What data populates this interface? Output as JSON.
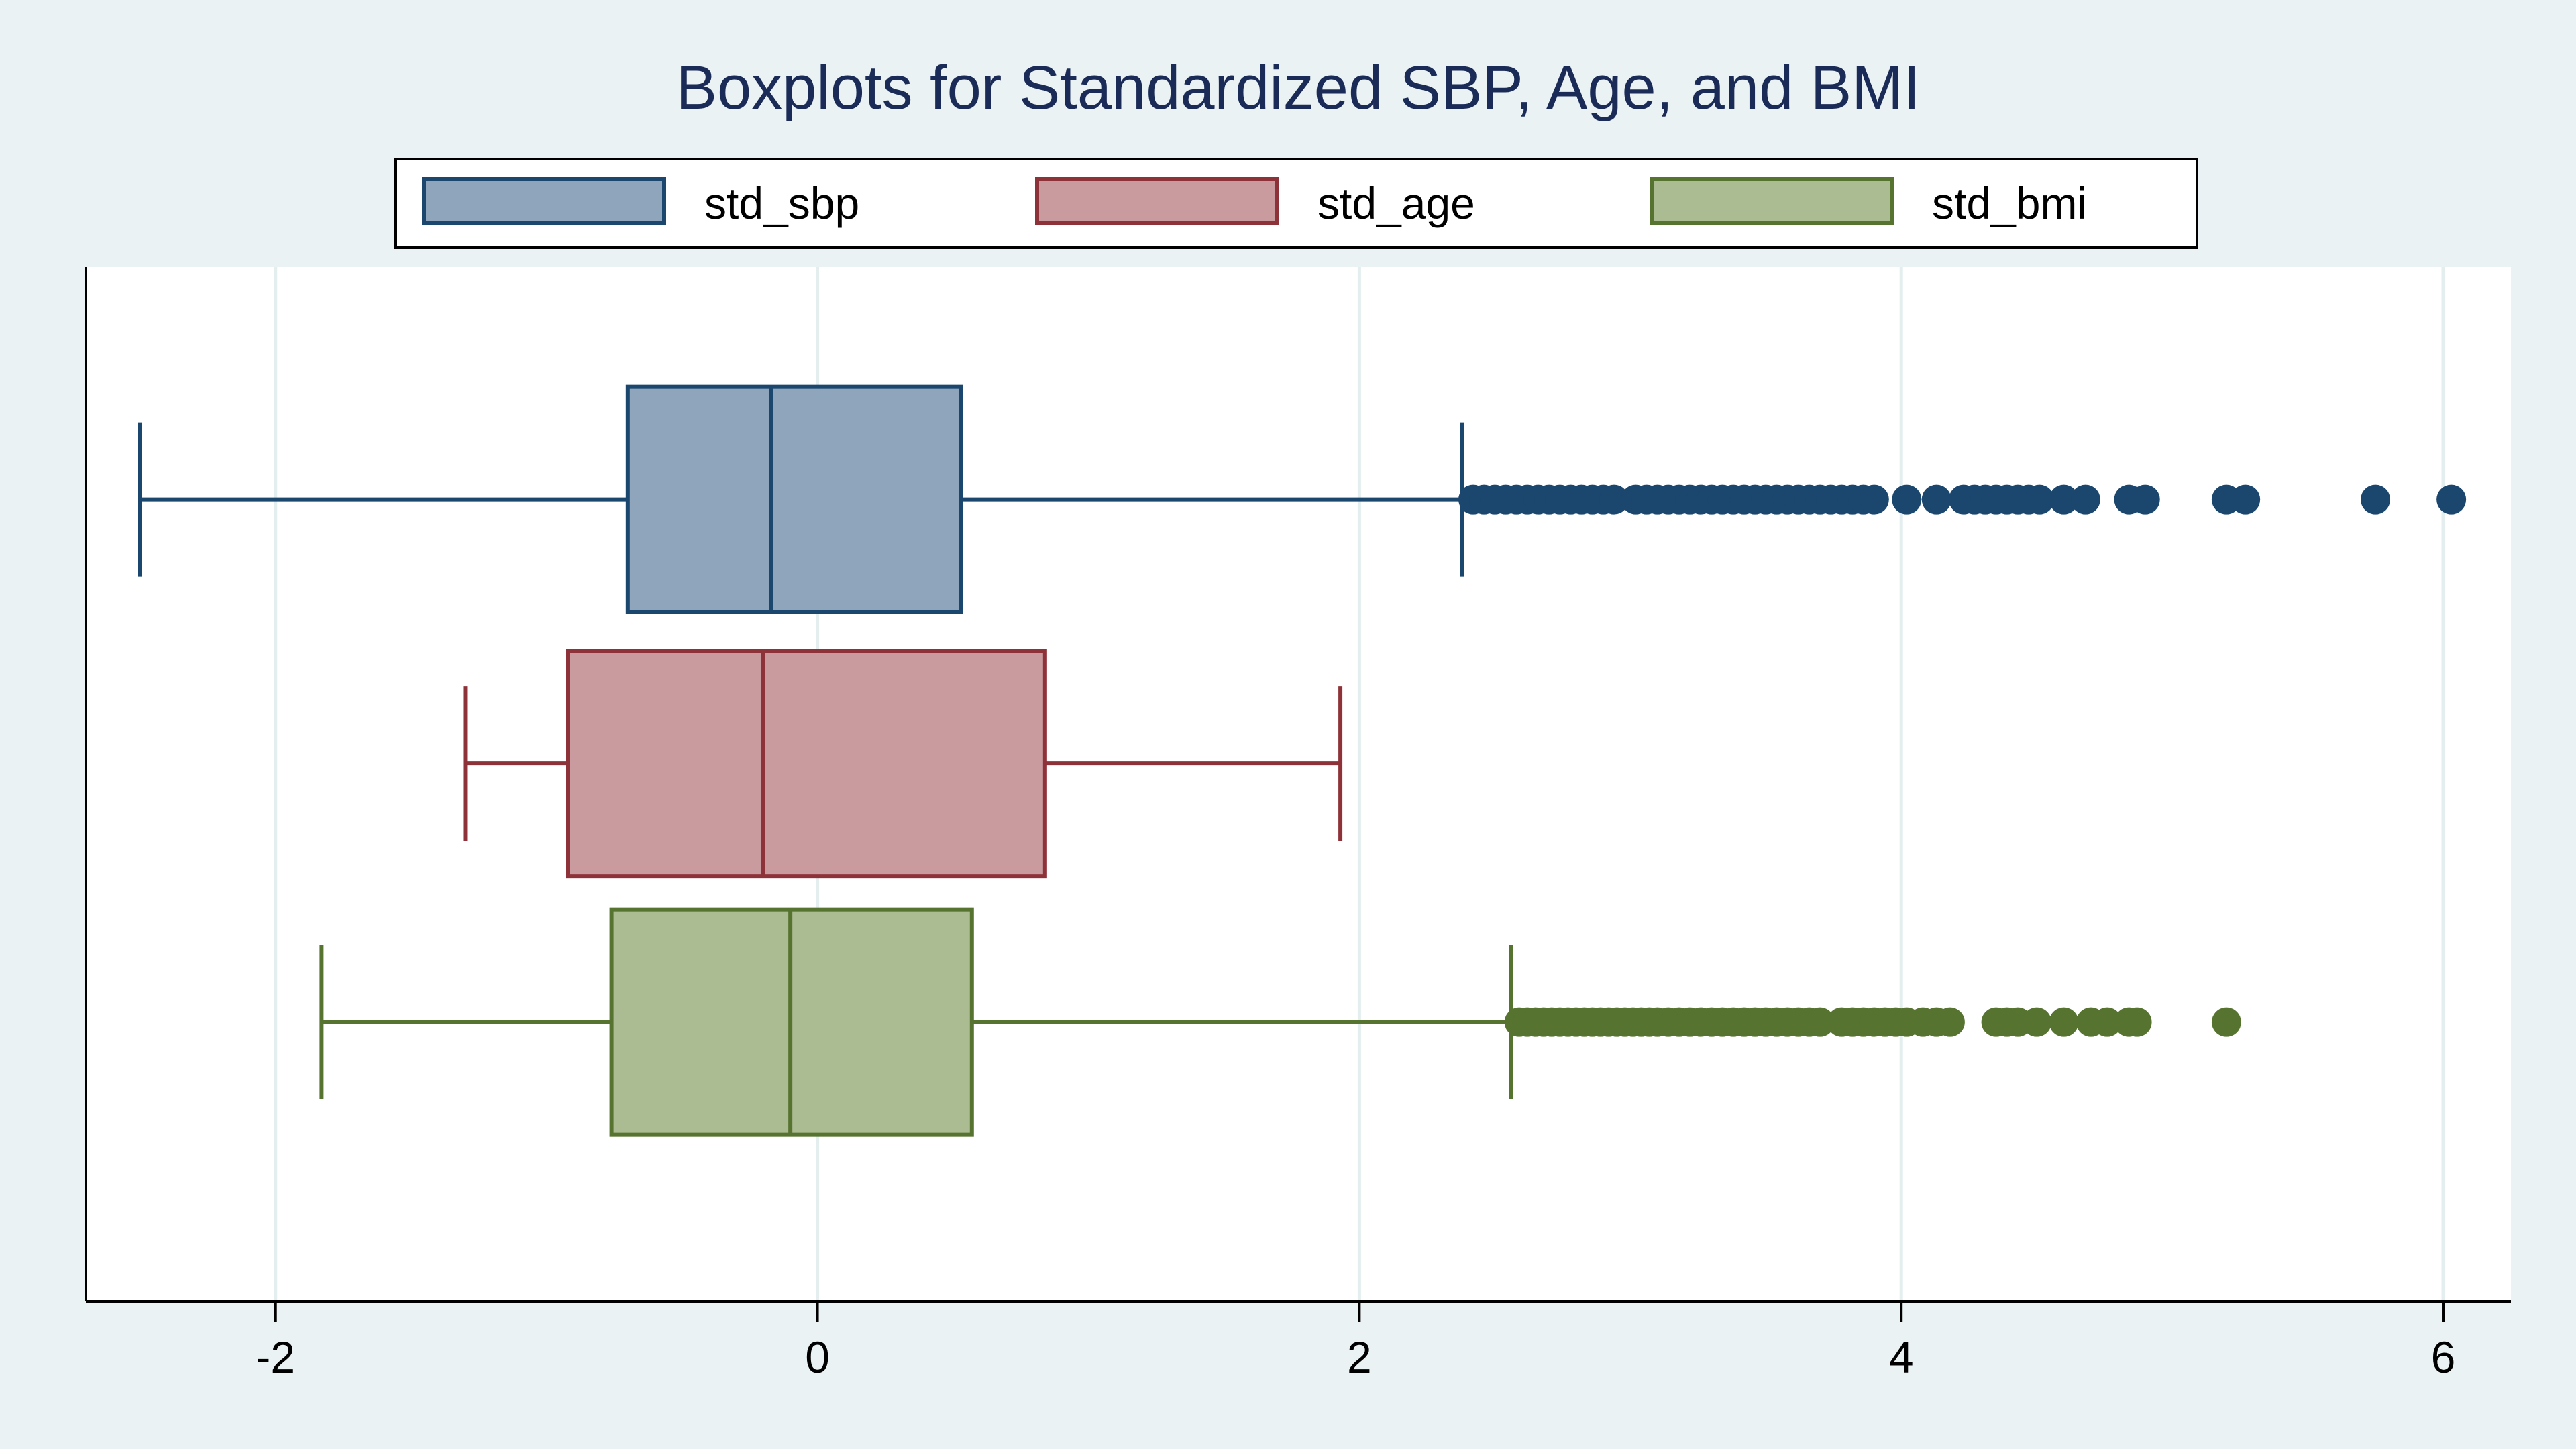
{
  "chart_data": {
    "type": "boxplot",
    "orientation": "horizontal",
    "title": "Boxplots for Standardized SBP, Age, and BMI",
    "xlim": [
      -2.7,
      6.25
    ],
    "x_ticks": [
      -2,
      0,
      2,
      4,
      6
    ],
    "x_tick_labels": [
      "-2",
      "0",
      "2",
      "4",
      "6"
    ],
    "grid": true,
    "legend_position": "top",
    "series": [
      {
        "name": "std_sbp",
        "fill": "#8ea5bb",
        "stroke": "#1b466e",
        "whisker_low": -2.5,
        "q1": -0.7,
        "median": -0.17,
        "q3": 0.53,
        "whisker_high": 2.38,
        "outliers": [
          2.42,
          2.46,
          2.5,
          2.54,
          2.58,
          2.62,
          2.66,
          2.7,
          2.74,
          2.78,
          2.82,
          2.86,
          2.9,
          2.94,
          3.02,
          3.06,
          3.1,
          3.14,
          3.18,
          3.22,
          3.26,
          3.3,
          3.34,
          3.38,
          3.42,
          3.46,
          3.5,
          3.54,
          3.58,
          3.62,
          3.66,
          3.7,
          3.74,
          3.78,
          3.82,
          3.86,
          3.9,
          4.02,
          4.13,
          4.23,
          4.27,
          4.31,
          4.35,
          4.39,
          4.43,
          4.47,
          4.51,
          4.6,
          4.68,
          4.84,
          4.9,
          5.2,
          5.27,
          5.75,
          6.03
        ]
      },
      {
        "name": "std_age",
        "fill": "#c99a9e",
        "stroke": "#8e3239",
        "whisker_low": -1.3,
        "q1": -0.92,
        "median": -0.2,
        "q3": 0.84,
        "whisker_high": 1.93,
        "outliers": []
      },
      {
        "name": "std_bmi",
        "fill": "#abbb92",
        "stroke": "#567330",
        "whisker_low": -1.83,
        "q1": -0.76,
        "median": -0.1,
        "q3": 0.57,
        "whisker_high": 2.56,
        "outliers": [
          2.59,
          2.62,
          2.65,
          2.68,
          2.71,
          2.74,
          2.77,
          2.8,
          2.83,
          2.86,
          2.89,
          2.92,
          2.95,
          2.98,
          3.01,
          3.04,
          3.07,
          3.1,
          3.14,
          3.18,
          3.22,
          3.26,
          3.3,
          3.34,
          3.38,
          3.42,
          3.46,
          3.5,
          3.54,
          3.58,
          3.62,
          3.66,
          3.7,
          3.78,
          3.82,
          3.86,
          3.9,
          3.94,
          3.98,
          4.02,
          4.08,
          4.13,
          4.18,
          4.35,
          4.39,
          4.43,
          4.5,
          4.6,
          4.7,
          4.76,
          4.84,
          4.87,
          5.2
        ]
      }
    ]
  }
}
